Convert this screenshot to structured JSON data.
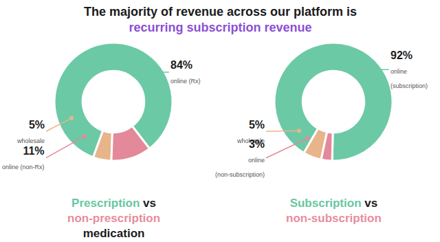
{
  "title": [
    {
      "text": "The majority of revenue across our platform is",
      "color": "#1b1b1b"
    },
    {
      "text": "recurring subscription revenue",
      "color": "#8b4fd6"
    }
  ],
  "chart_data": [
    {
      "type": "pie",
      "title": [
        [
          {
            "text": "Prescription",
            "color": "#67c7a2"
          },
          {
            "text": "vs",
            "color": "#1b1b1b"
          }
        ],
        [
          {
            "text": "non-prescription",
            "color": "#e98c9c"
          }
        ],
        [
          {
            "text": "medication",
            "color": "#1b1b1b"
          }
        ]
      ],
      "categories": [
        "online (Rx)",
        "wholesale",
        "online (non-Rx)"
      ],
      "values": [
        84,
        5,
        11
      ],
      "value_labels": [
        "84%",
        "5%",
        "11%"
      ],
      "colors": [
        "#6cc9a6",
        "#e8b48a",
        "#e4899a"
      ]
    },
    {
      "type": "pie",
      "title": [
        [
          {
            "text": "Subscription",
            "color": "#67c7a2"
          },
          {
            "text": "vs",
            "color": "#1b1b1b"
          }
        ],
        [
          {
            "text": "non-subscription",
            "color": "#e98c9c"
          }
        ]
      ],
      "categories": [
        "online (subscription)",
        "wholesale",
        "online (non-subscription)"
      ],
      "values": [
        92,
        5,
        3
      ],
      "value_labels": [
        "92%",
        "5%",
        "3%"
      ],
      "colors": [
        "#6cc9a6",
        "#e8b48a",
        "#e4899a"
      ]
    }
  ]
}
